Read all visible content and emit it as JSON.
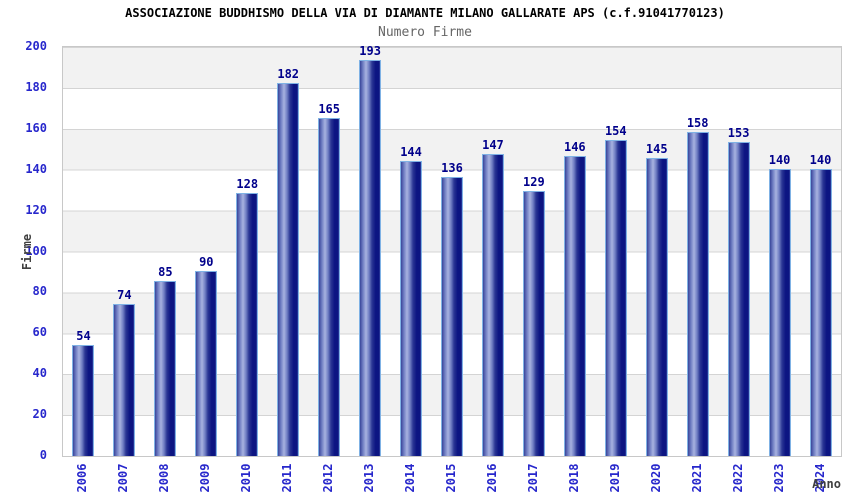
{
  "chart_data": {
    "type": "bar",
    "title": "ASSOCIAZIONE BUDDHISMO DELLA VIA DI DIAMANTE MILANO GALLARATE APS (c.f.91041770123)",
    "subtitle": "Numero Firme",
    "xlabel": "Anno",
    "ylabel": "Firme",
    "categories": [
      "2006",
      "2007",
      "2008",
      "2009",
      "2010",
      "2011",
      "2012",
      "2013",
      "2014",
      "2015",
      "2016",
      "2017",
      "2018",
      "2019",
      "2020",
      "2021",
      "2022",
      "2023",
      "2024"
    ],
    "values": [
      54,
      74,
      85,
      90,
      128,
      182,
      165,
      193,
      144,
      136,
      147,
      129,
      146,
      154,
      145,
      158,
      153,
      140,
      140
    ],
    "ylim": [
      0,
      200
    ],
    "ytick_step": 20,
    "grid": "horizontal-bands",
    "legend": "none",
    "colors": {
      "bar_dark": "#0c1582",
      "bar_highlight": "#a8b2e0",
      "bar_outline": "#7fb2e5",
      "tick_label": "#2727cc",
      "value_label": "#00008b",
      "axis_title": "#404040",
      "title": "#000000",
      "subtitle": "#666666",
      "band_gray": "#f2f2f2",
      "gridline": "#d4d4d4"
    }
  }
}
